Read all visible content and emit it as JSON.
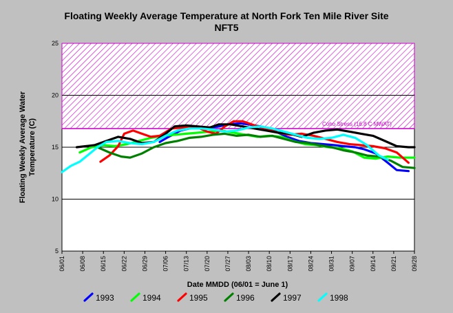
{
  "chart_data": {
    "type": "line",
    "title": "Floating Weekly Average Temperature at North Fork Ten Mile River Site",
    "subtitle": "NFT5",
    "xlabel": "Date MMDD (06/01 = June 1)",
    "ylabel": "Floating Weekly Average Water Temperature (C)",
    "ylim": [
      5,
      25
    ],
    "yticks": [
      5,
      10,
      15,
      20,
      25
    ],
    "x_ticks": [
      "06/01",
      "06/08",
      "06/15",
      "06/22",
      "06/29",
      "07/06",
      "07/13",
      "07/20",
      "07/27",
      "08/03",
      "08/10",
      "08/17",
      "08/24",
      "08/31",
      "09/07",
      "09/14",
      "09/21",
      "09/28"
    ],
    "grid": "horizontal",
    "legend_position": "bottom",
    "threshold": {
      "label": "Coho Stress (16.8 C MWAT)",
      "value": 16.8,
      "band_top": 25,
      "color": "#cc00cc"
    },
    "series": [
      {
        "name": "1993",
        "color": "#0000ff",
        "x": [
          33,
          36,
          40,
          43,
          46,
          50,
          53,
          56,
          60,
          63,
          67,
          70,
          73,
          76,
          80,
          84,
          88,
          92,
          95,
          99,
          102,
          106,
          110,
          113,
          117
        ],
        "values": [
          15.5,
          16.0,
          16.6,
          16.8,
          16.9,
          16.9,
          17.0,
          17.2,
          17.3,
          17.2,
          17.0,
          16.8,
          16.4,
          16.0,
          15.6,
          15.4,
          15.3,
          15.2,
          15.1,
          15.0,
          14.8,
          14.4,
          13.5,
          12.8,
          12.7
        ]
      },
      {
        "name": "1994",
        "color": "#00ff00",
        "x": [
          6,
          10,
          14,
          18,
          22,
          26,
          30,
          34,
          38,
          42,
          46,
          50,
          54,
          58,
          62,
          66,
          70,
          74,
          78,
          82,
          86,
          90,
          94,
          98,
          102,
          106,
          110,
          114,
          119
        ],
        "values": [
          14.5,
          15.0,
          15.2,
          15.1,
          15.3,
          15.6,
          15.9,
          16.1,
          16.2,
          16.3,
          16.4,
          16.5,
          16.6,
          16.4,
          16.2,
          16.0,
          16.1,
          16.0,
          15.6,
          15.3,
          15.2,
          15.0,
          14.9,
          14.6,
          14.0,
          13.9,
          14.1,
          14.0,
          14.0
        ]
      },
      {
        "name": "1995",
        "color": "#ff0000",
        "x": [
          13,
          16,
          19,
          21,
          24,
          27,
          30,
          33,
          37,
          41,
          45,
          49,
          52,
          55,
          58,
          61,
          65,
          69,
          73,
          77,
          81,
          85,
          89,
          93,
          97,
          101,
          105,
          109,
          113,
          117
        ],
        "values": [
          13.6,
          14.2,
          15.1,
          16.3,
          16.6,
          16.3,
          16.0,
          16.1,
          16.8,
          16.9,
          17.0,
          16.5,
          16.3,
          17.0,
          17.5,
          17.5,
          17.1,
          16.8,
          16.4,
          16.2,
          16.3,
          16.1,
          15.8,
          15.5,
          15.3,
          15.2,
          15.1,
          14.9,
          14.5,
          13.5
        ]
      },
      {
        "name": "1996",
        "color": "#008000",
        "x": [
          12,
          16,
          20,
          23,
          27,
          31,
          35,
          39,
          43,
          47,
          51,
          55,
          59,
          63,
          67,
          71,
          75,
          79,
          83,
          87,
          91,
          95,
          99,
          103,
          107,
          111,
          115,
          119
        ],
        "values": [
          15.0,
          14.5,
          14.1,
          14.0,
          14.4,
          15.0,
          15.4,
          15.6,
          15.9,
          16.0,
          16.2,
          16.3,
          16.1,
          16.2,
          16.0,
          16.1,
          15.8,
          15.5,
          15.4,
          15.2,
          15.0,
          14.7,
          14.5,
          14.2,
          14.1,
          13.7,
          13.1,
          13.0
        ]
      },
      {
        "name": "1997",
        "color": "#000000",
        "x": [
          5,
          8,
          11,
          15,
          19,
          23,
          27,
          31,
          35,
          38,
          42,
          46,
          50,
          53,
          57,
          61,
          65,
          69,
          73,
          77,
          81,
          85,
          89,
          93,
          97,
          101,
          105,
          109,
          113,
          117,
          119
        ],
        "values": [
          15.0,
          15.1,
          15.2,
          15.6,
          16.0,
          15.8,
          15.4,
          15.5,
          16.3,
          17.0,
          17.1,
          17.0,
          16.9,
          17.2,
          17.2,
          17.0,
          16.8,
          16.6,
          16.4,
          16.3,
          16.0,
          16.4,
          16.6,
          16.7,
          16.5,
          16.3,
          16.1,
          15.6,
          15.1,
          15.0,
          15.0
        ]
      },
      {
        "name": "1998",
        "color": "#00ffff",
        "x": [
          0,
          3,
          6,
          9,
          12,
          15,
          19,
          23,
          27,
          31,
          35,
          39,
          43,
          47,
          51,
          55,
          59,
          63,
          67,
          71,
          75,
          79,
          83,
          87,
          91,
          95,
          99,
          103,
          107,
          110
        ],
        "values": [
          12.6,
          13.2,
          13.6,
          14.3,
          15.0,
          15.5,
          15.6,
          15.4,
          15.3,
          15.5,
          16.1,
          16.6,
          16.8,
          16.8,
          16.7,
          16.5,
          16.6,
          16.9,
          17.0,
          16.8,
          16.5,
          16.2,
          15.9,
          15.8,
          15.9,
          16.2,
          15.9,
          15.2,
          14.2,
          13.8
        ]
      }
    ]
  }
}
